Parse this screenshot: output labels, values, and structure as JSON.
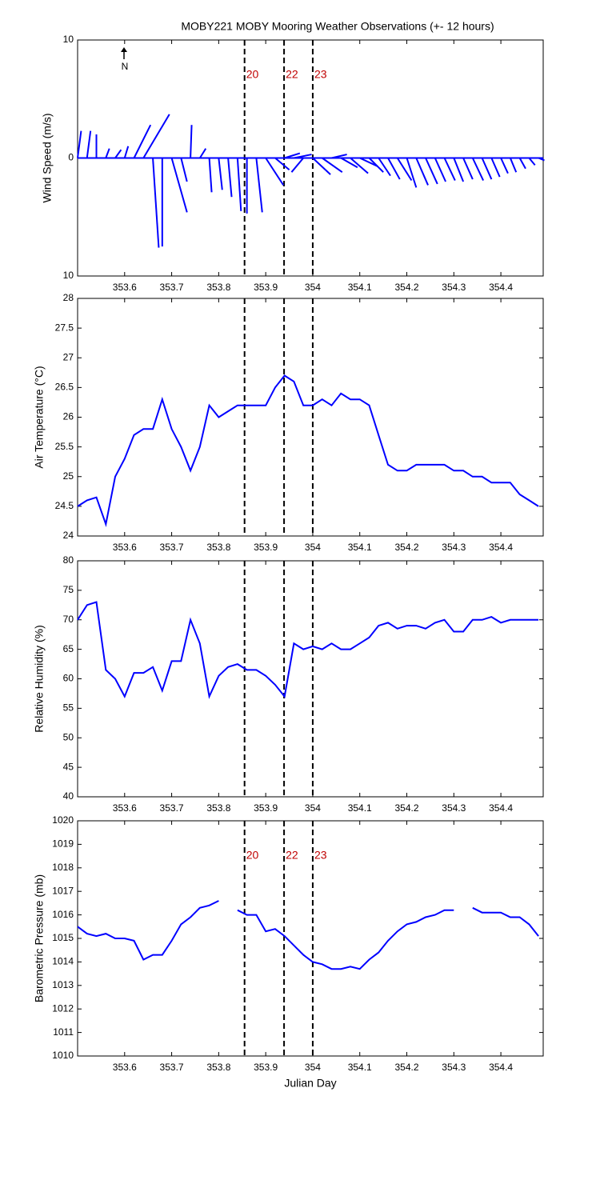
{
  "chart_data": [
    {
      "type": "stick",
      "title": "MOBY221 MOBY Mooring Weather Observations (+- 12 hours)",
      "ylabel": "Wind Speed (m/s)",
      "north_label": "N",
      "x": [
        353.5,
        353.52,
        353.54,
        353.56,
        353.58,
        353.6,
        353.62,
        353.64,
        353.66,
        353.68,
        353.7,
        353.72,
        353.74,
        353.76,
        353.78,
        353.8,
        353.82,
        353.84,
        353.86,
        353.88,
        353.9,
        353.92,
        353.94,
        353.96,
        353.98,
        354,
        354.02,
        354.04,
        354.06,
        354.08,
        354.1,
        354.12,
        354.14,
        354.16,
        354.18,
        354.2,
        354.22,
        354.24,
        354.26,
        354.28,
        354.3,
        354.32,
        354.34,
        354.36,
        354.38,
        354.4,
        354.42,
        354.44,
        354.46,
        354.48
      ],
      "u": [
        0.3,
        0.3,
        0,
        0.3,
        0.5,
        0.3,
        1.4,
        2.2,
        0.5,
        0,
        1.3,
        0.5,
        0.1,
        0.5,
        0.2,
        0.3,
        0.3,
        0.3,
        0,
        0.5,
        1.5,
        1.2,
        1.3,
        1.5,
        -1,
        1.5,
        1.7,
        1.3,
        1.4,
        1.5,
        1.5,
        1.2,
        1,
        1,
        1.2,
        0.8,
        1,
        1,
        0.9,
        0.9,
        0.8,
        0.8,
        0.9,
        0.8,
        0.7,
        0.6,
        0.5,
        0.5,
        0.5,
        0.5
      ],
      "v": [
        2.3,
        2.3,
        2,
        0.8,
        0.7,
        1,
        2.8,
        3.7,
        -7.6,
        -7.5,
        -4.6,
        -2,
        2.8,
        0.8,
        -2.9,
        -2.7,
        -3.3,
        -4.5,
        -4.7,
        -4.6,
        -2.3,
        -1,
        0.4,
        0.3,
        -1.2,
        -1.4,
        -1.2,
        0.3,
        -0.8,
        -1.3,
        -0.7,
        -1.2,
        -1.5,
        -1.8,
        -1.9,
        -2.5,
        -2.3,
        -2.2,
        -2,
        -1.9,
        -2,
        -1.8,
        -1.9,
        -1.8,
        -1.6,
        -1.3,
        -1.2,
        -0.9,
        -0.6,
        -0.2
      ],
      "color": "#0000ff",
      "xlim": [
        353.5,
        354.49
      ],
      "xticks": [
        353.6,
        353.7,
        353.8,
        353.9,
        354,
        354.1,
        354.2,
        354.3,
        354.4
      ],
      "ylim": [
        -10,
        10
      ],
      "yticks": [
        {
          "value": -10,
          "label": "10"
        },
        0,
        10
      ],
      "vlines": [
        353.855,
        353.939,
        354.0
      ],
      "vline_labels": [
        "20",
        "22",
        "23"
      ]
    },
    {
      "type": "line",
      "ylabel": "Air Temperature (°C)",
      "x": [
        353.5,
        353.52,
        353.54,
        353.56,
        353.58,
        353.6,
        353.62,
        353.64,
        353.66,
        353.68,
        353.7,
        353.72,
        353.74,
        353.76,
        353.78,
        353.8,
        353.82,
        353.84,
        353.86,
        353.88,
        353.9,
        353.92,
        353.94,
        353.96,
        353.98,
        354,
        354.02,
        354.04,
        354.06,
        354.08,
        354.1,
        354.12,
        354.14,
        354.16,
        354.18,
        354.2,
        354.22,
        354.24,
        354.26,
        354.28,
        354.3,
        354.32,
        354.34,
        354.36,
        354.38,
        354.4,
        354.42,
        354.44,
        354.46,
        354.48
      ],
      "values": [
        24.5,
        24.6,
        24.65,
        24.2,
        25,
        25.3,
        25.7,
        25.8,
        25.8,
        26.3,
        25.8,
        25.5,
        25.1,
        25.5,
        26.2,
        26,
        26.1,
        26.2,
        26.2,
        26.2,
        26.2,
        26.5,
        26.7,
        26.6,
        26.2,
        26.2,
        26.3,
        26.2,
        26.4,
        26.3,
        26.3,
        26.2,
        25.7,
        25.2,
        25.1,
        25.1,
        25.2,
        25.2,
        25.2,
        25.2,
        25.1,
        25.1,
        25,
        25,
        24.9,
        24.9,
        24.9,
        24.7,
        24.6,
        24.5
      ],
      "color": "#0000ff",
      "xlim": [
        353.5,
        354.49
      ],
      "xticks": [
        353.6,
        353.7,
        353.8,
        353.9,
        354,
        354.1,
        354.2,
        354.3,
        354.4
      ],
      "ylim": [
        24,
        28
      ],
      "yticks": [
        24,
        24.5,
        25,
        25.5,
        26,
        26.5,
        27,
        27.5,
        28
      ],
      "vlines": [
        353.855,
        353.939,
        354.0
      ]
    },
    {
      "type": "line",
      "ylabel": "Relative Humidity (%)",
      "x": [
        353.5,
        353.52,
        353.54,
        353.56,
        353.58,
        353.6,
        353.62,
        353.64,
        353.66,
        353.68,
        353.7,
        353.72,
        353.74,
        353.76,
        353.78,
        353.8,
        353.82,
        353.84,
        353.86,
        353.88,
        353.9,
        353.92,
        353.94,
        353.96,
        353.98,
        354,
        354.02,
        354.04,
        354.06,
        354.08,
        354.1,
        354.12,
        354.14,
        354.16,
        354.18,
        354.2,
        354.22,
        354.24,
        354.26,
        354.28,
        354.3,
        354.32,
        354.34,
        354.36,
        354.38,
        354.4,
        354.42,
        354.44,
        354.46,
        354.48
      ],
      "values": [
        70,
        72.5,
        73,
        61.5,
        60,
        57,
        61,
        61,
        62,
        58,
        63,
        63,
        70,
        66,
        57,
        60.5,
        62,
        62.5,
        61.5,
        61.5,
        60.5,
        59,
        57,
        66,
        65,
        65.5,
        65,
        66,
        65,
        65,
        66,
        67,
        69,
        69.5,
        68.5,
        69,
        69,
        68.5,
        69.5,
        70,
        68,
        68,
        70,
        70,
        70.5,
        69.5,
        70,
        70,
        70,
        70
      ],
      "color": "#0000ff",
      "xlim": [
        353.5,
        354.49
      ],
      "xticks": [
        353.6,
        353.7,
        353.8,
        353.9,
        354,
        354.1,
        354.2,
        354.3,
        354.4
      ],
      "ylim": [
        40,
        80
      ],
      "yticks": [
        40,
        45,
        50,
        55,
        60,
        65,
        70,
        75,
        80
      ],
      "vlines": [
        353.855,
        353.939,
        354.0
      ]
    },
    {
      "type": "line",
      "ylabel": "Barometric Pressure (mb)",
      "xlabel": "Julian Day",
      "x": [
        353.5,
        353.52,
        353.54,
        353.56,
        353.58,
        353.6,
        353.62,
        353.64,
        353.66,
        353.68,
        353.7,
        353.72,
        353.74,
        353.76,
        353.78,
        353.8,
        353.82,
        353.84,
        353.86,
        353.88,
        353.9,
        353.92,
        353.94,
        353.96,
        353.98,
        354,
        354.02,
        354.04,
        354.06,
        354.08,
        354.1,
        354.12,
        354.14,
        354.16,
        354.18,
        354.2,
        354.22,
        354.24,
        354.26,
        354.28,
        354.3,
        354.32,
        354.34,
        354.36,
        354.38,
        354.4,
        354.42,
        354.44,
        354.46,
        354.48
      ],
      "values": [
        1015.5,
        1015.2,
        1015.1,
        1015.2,
        1015,
        1015,
        1014.9,
        1014.1,
        1014.3,
        1014.3,
        1014.9,
        1015.6,
        1015.9,
        1016.3,
        1016.4,
        1016.6,
        null,
        1016.2,
        1016,
        1016,
        1015.3,
        1015.4,
        1015.1,
        1014.7,
        1014.3,
        1014,
        1013.9,
        1013.7,
        1013.7,
        1013.8,
        1013.7,
        1014.1,
        1014.4,
        1014.9,
        1015.3,
        1015.6,
        1015.7,
        1015.9,
        1016,
        1016.2,
        1016.2,
        null,
        1016.3,
        1016.1,
        1016.1,
        1016.1,
        1015.9,
        1015.9,
        1015.6,
        1015.1
      ],
      "color": "#0000ff",
      "xlim": [
        353.5,
        354.49
      ],
      "xticks": [
        353.6,
        353.7,
        353.8,
        353.9,
        354,
        354.1,
        354.2,
        354.3,
        354.4
      ],
      "ylim": [
        1010,
        1020
      ],
      "yticks": [
        1010,
        1011,
        1012,
        1013,
        1014,
        1015,
        1016,
        1017,
        1018,
        1019,
        1020
      ],
      "vlines": [
        353.855,
        353.939,
        354.0
      ],
      "vline_labels": [
        "20",
        "22",
        "23"
      ]
    }
  ]
}
